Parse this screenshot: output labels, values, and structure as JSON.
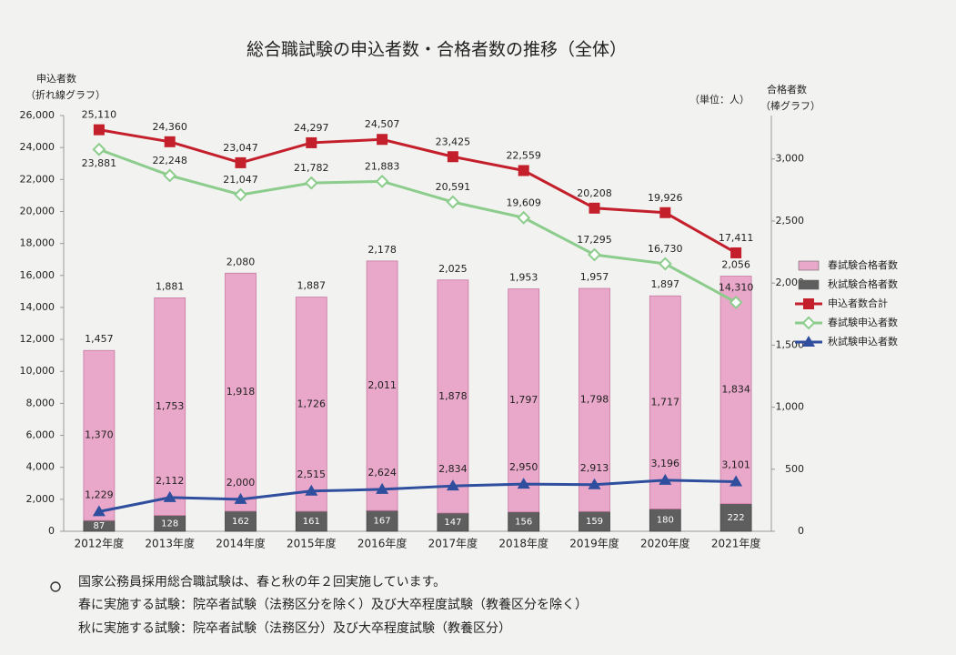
{
  "chart_data": {
    "type": "combo",
    "title": "総合職試験の申込者数・合格者数の推移（全体）",
    "ylabel": "申込者数",
    "ylabel_note": "（折れ線グラフ）",
    "y2label": "合格者数",
    "y2label_note": "（棒グラフ）",
    "unit": "（単位：人）",
    "categories": [
      "2012年度",
      "2013年度",
      "2014年度",
      "2015年度",
      "2016年度",
      "2017年度",
      "2018年度",
      "2019年度",
      "2020年度",
      "2021年度"
    ],
    "ylim": [
      0,
      26000
    ],
    "yticks": [
      0,
      {
        "value": 2000,
        "label": "2,000"
      },
      {
        "value": 4000,
        "label": "4,000"
      },
      {
        "value": 6000,
        "label": "6,000"
      },
      {
        "value": 8000,
        "label": "8,000"
      },
      {
        "value": 10000,
        "label": "10,000"
      },
      {
        "value": 12000,
        "label": "12,000"
      },
      {
        "value": 14000,
        "label": "14,000"
      },
      {
        "value": 16000,
        "label": "16,000"
      },
      {
        "value": 18000,
        "label": "18,000"
      },
      {
        "value": 20000,
        "label": "20,000"
      },
      {
        "value": 22000,
        "label": "22,000"
      },
      {
        "value": 24000,
        "label": "24,000"
      },
      {
        "value": 26000,
        "label": "26,000"
      }
    ],
    "y2lim": [
      0,
      3350
    ],
    "y2ticks": [
      0,
      500,
      {
        "value": 1000,
        "label": "1,000"
      },
      {
        "value": 1500,
        "label": "1,500"
      },
      {
        "value": 2000,
        "label": "2,000"
      },
      {
        "value": 2500,
        "label": "2,500"
      },
      {
        "value": 3000,
        "label": "3,000"
      }
    ],
    "stacked": true,
    "bar_total_labels": [
      "1,457",
      "1,881",
      "2,080",
      "1,887",
      "2,178",
      "2,025",
      "1,953",
      "1,957",
      "1,897",
      "2,056"
    ],
    "series": [
      {
        "name": "春試験合格者数",
        "type": "bar",
        "axis": "y2",
        "color": "#e9a8c9",
        "values": [
          1370,
          1753,
          1918,
          1726,
          2011,
          1878,
          1797,
          1798,
          1717,
          1834
        ],
        "value_labels": [
          "1,370",
          "1,753",
          "1,918",
          "1,726",
          "2,011",
          "1,878",
          "1,797",
          "1,798",
          "1,717",
          "1,834"
        ]
      },
      {
        "name": "秋試験合格者数",
        "type": "bar",
        "axis": "y2",
        "color": "#5e5e5e",
        "values": [
          87,
          128,
          162,
          161,
          167,
          147,
          156,
          159,
          180,
          222
        ]
      },
      {
        "name": "申込者数合計",
        "type": "line",
        "marker": "square",
        "color": "#c4202c",
        "values": [
          25110,
          24360,
          23047,
          24297,
          24507,
          23425,
          22559,
          20208,
          19926,
          17411
        ],
        "value_labels": [
          "25,110",
          "24,360",
          "23,047",
          "24,297",
          "24,507",
          "23,425",
          "22,559",
          "20,208",
          "19,926",
          "17,411"
        ]
      },
      {
        "name": "春試験申込者数",
        "type": "line",
        "marker": "diamond",
        "color": "#8ccc8c",
        "values": [
          23881,
          22248,
          21047,
          21782,
          21883,
          20591,
          19609,
          17295,
          16730,
          14310
        ],
        "value_labels": [
          "23,881",
          "22,248",
          "21,047",
          "21,782",
          "21,883",
          "20,591",
          "19,609",
          "17,295",
          "16,730",
          "14,310"
        ]
      },
      {
        "name": "秋試験申込者数",
        "type": "line",
        "marker": "triangle",
        "color": "#2f4f9e",
        "values": [
          1229,
          2112,
          2000,
          2515,
          2624,
          2834,
          2950,
          2913,
          3196,
          3101
        ],
        "value_labels": [
          "1,229",
          "2,112",
          "2,000",
          "2,515",
          "2,624",
          "2,834",
          "2,950",
          "2,913",
          "3,196",
          "3,101"
        ]
      }
    ]
  },
  "notes": [
    "国家公務員採用総合職試験は、春と秋の年２回実施しています。",
    "春に実施する試験：院卒者試験（法務区分を除く）及び大卒程度試験（教養区分を除く）",
    "秋に実施する試験：院卒者試験（法務区分）及び大卒程度試験（教養区分）"
  ]
}
